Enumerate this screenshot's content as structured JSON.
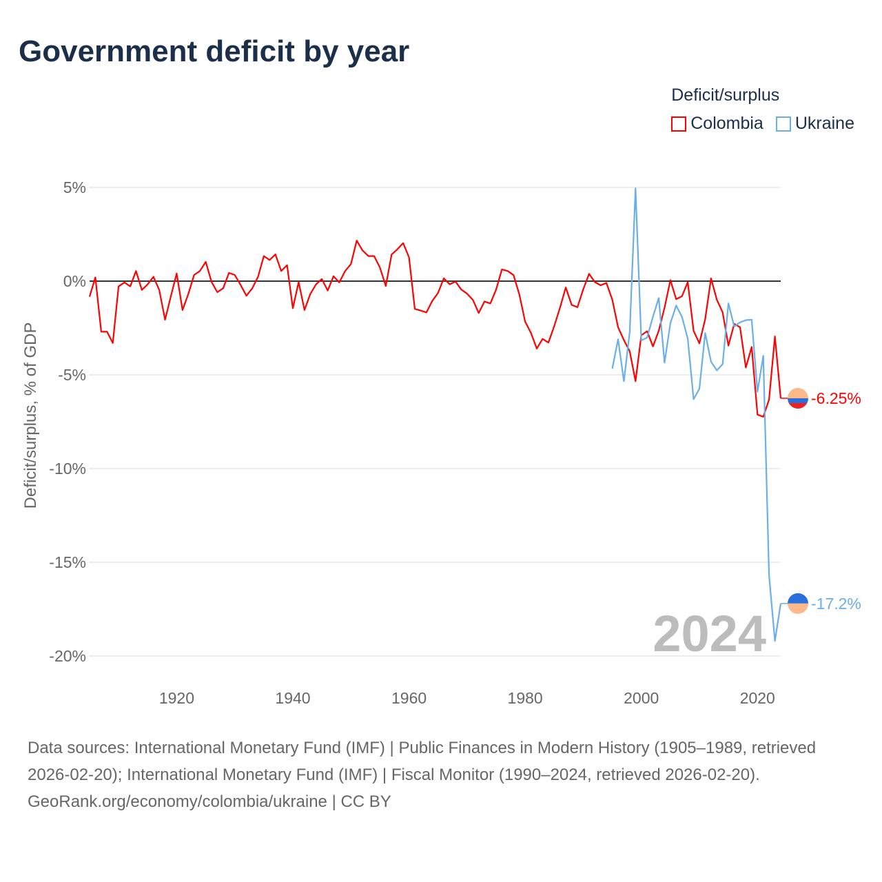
{
  "title": "Government deficit by year",
  "legend": {
    "title": "Deficit/surplus",
    "items": [
      {
        "label": "Colombia",
        "color": "#ff0000"
      },
      {
        "label": "Ukraine",
        "color": "#6aaeea"
      }
    ]
  },
  "year_label": "2024",
  "footer": {
    "sources": "Data sources: International Monetary Fund (IMF) | Public Finances in Modern History (1905–1989, retrieved 2026-02-20); International Monetary Fund (IMF) | Fiscal Monitor (1990–2024, retrieved 2026-02-20).",
    "credit": "GeoRank.org/economy/colombia/ukraine | CC BY"
  },
  "chart_data": {
    "type": "line",
    "title": "Government deficit by year",
    "xlabel": "",
    "ylabel": "Deficit/surplus, % of GDP",
    "xlim": [
      1905,
      2024
    ],
    "ylim": [
      -20,
      5
    ],
    "grid": true,
    "legend_position": "top-right",
    "x_ticks": [
      1920,
      1940,
      1960,
      1980,
      2000,
      2020
    ],
    "y_ticks": [
      5,
      0,
      -5,
      -10,
      -15,
      -20
    ],
    "y_tick_labels": [
      "5%",
      "0%",
      "-5%",
      "-10%",
      "-15%",
      "-20%"
    ],
    "series": [
      {
        "name": "Colombia",
        "color": "#ff0000",
        "start_year": 1905,
        "end_label": "-6.25%",
        "values": [
          -0.83,
          0.2,
          -2.7,
          -2.7,
          -3.3,
          -0.28,
          -0.07,
          -0.28,
          0.54,
          -0.47,
          -0.17,
          0.23,
          -0.47,
          -2.06,
          -0.8,
          0.41,
          -1.54,
          -0.69,
          0.33,
          0.54,
          1.03,
          -0.04,
          -0.59,
          -0.38,
          0.44,
          0.33,
          -0.2,
          -0.78,
          -0.39,
          0.22,
          1.34,
          1.13,
          1.43,
          0.54,
          0.85,
          -1.45,
          -0.05,
          -1.54,
          -0.69,
          -0.17,
          0.11,
          -0.5,
          0.26,
          -0.07,
          0.54,
          0.91,
          2.16,
          1.64,
          1.34,
          1.34,
          0.72,
          -0.26,
          1.42,
          1.7,
          2.03,
          1.27,
          -1.48,
          -1.57,
          -1.67,
          -1.06,
          -0.63,
          0.15,
          -0.17,
          -0.02,
          -0.45,
          -0.67,
          -1.0,
          -1.7,
          -1.09,
          -1.19,
          -0.45,
          0.62,
          0.54,
          0.32,
          -0.71,
          -2.16,
          -2.77,
          -3.6,
          -3.08,
          -3.28,
          -2.4,
          -1.42,
          -0.34,
          -1.27,
          -1.39,
          -0.44,
          0.39,
          -0.05,
          -0.22,
          -0.1,
          -0.99,
          -2.46,
          -3.14,
          -3.75,
          -5.34,
          -2.89,
          -2.67,
          -3.48,
          -2.65,
          -1.42,
          0.05,
          -0.96,
          -0.81,
          -0.05,
          -2.65,
          -3.32,
          -2.03,
          0.15,
          -0.99,
          -1.66,
          -3.44,
          -2.28,
          -2.46,
          -4.61,
          -3.51,
          -7.12,
          -7.24,
          -6.32,
          -2.95,
          -6.25
        ]
      },
      {
        "name": "Ukraine",
        "color": "#6aaeea",
        "start_year": 1995,
        "end_label": "-17.2%",
        "values": [
          -4.67,
          -3.1,
          -5.34,
          -2.71,
          4.95,
          -3.17,
          -3.01,
          -1.9,
          -0.9,
          -4.35,
          -2.25,
          -1.3,
          -1.9,
          -3.07,
          -6.3,
          -5.74,
          -2.77,
          -4.3,
          -4.76,
          -4.43,
          -1.19,
          -2.42,
          -2.2,
          -2.08,
          -2.06,
          -5.9,
          -3.98,
          -15.7,
          -19.2,
          -17.2
        ]
      }
    ]
  }
}
